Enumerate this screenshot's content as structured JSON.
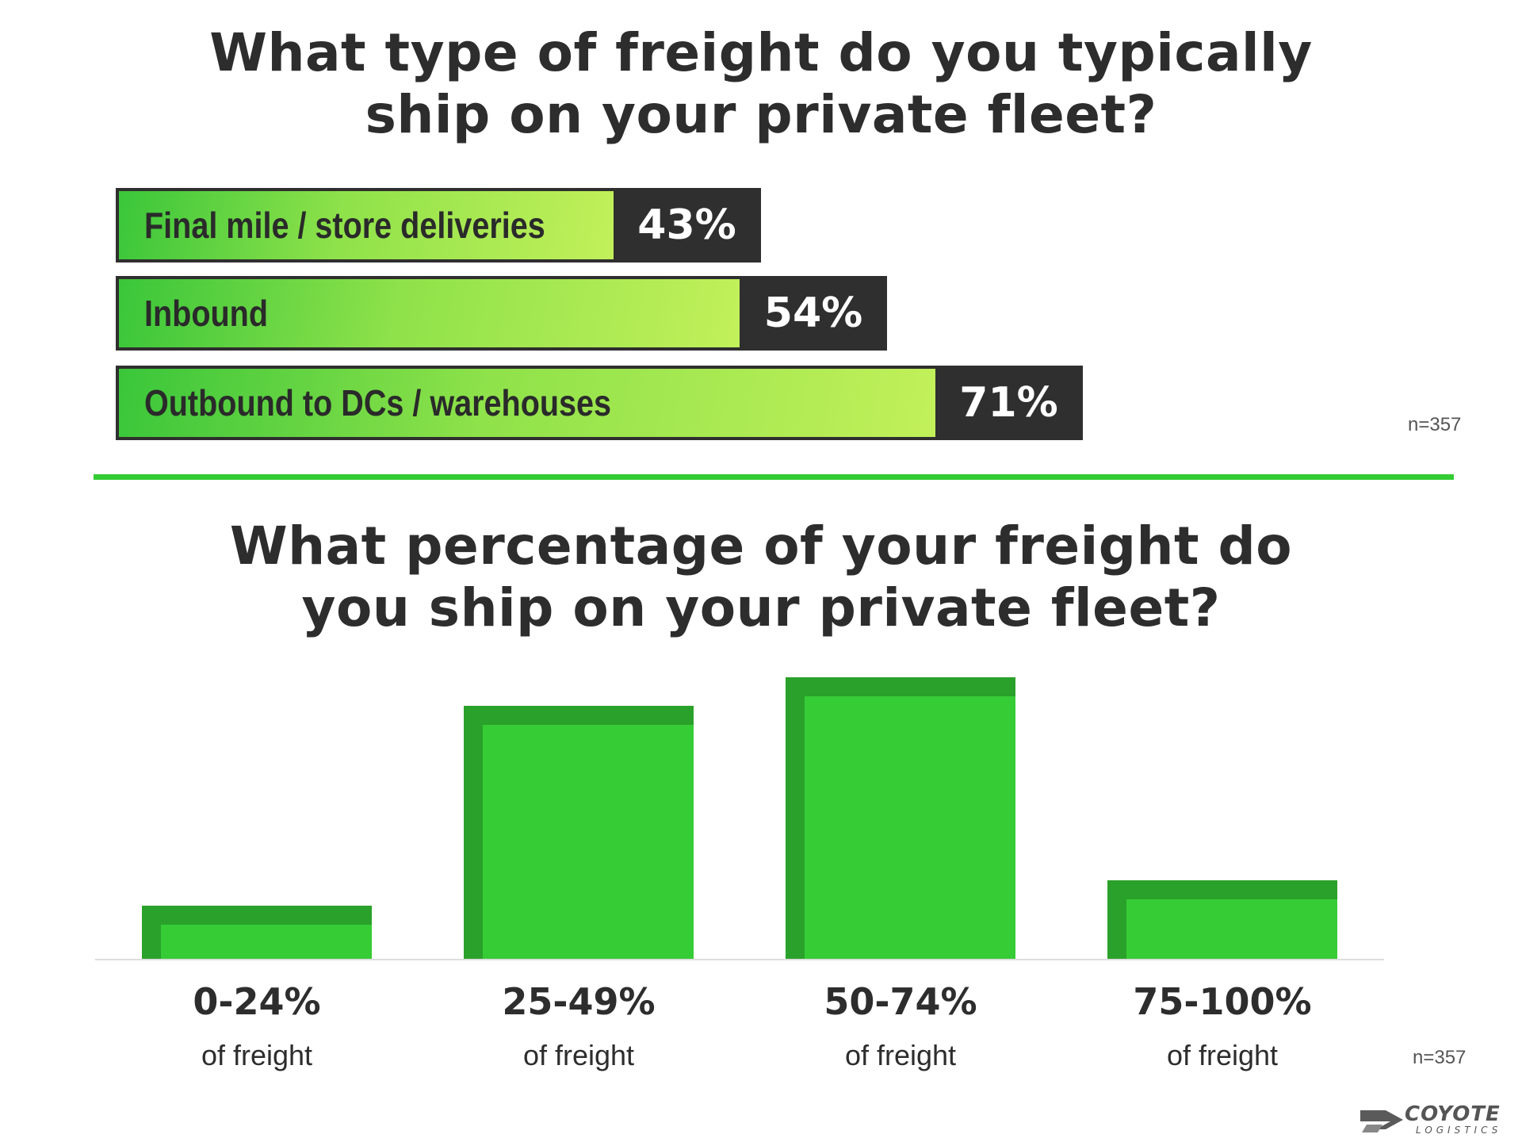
{
  "chart_data": [
    {
      "type": "bar",
      "orientation": "horizontal",
      "title": "What type of freight do you typically ship on your private fleet?",
      "categories": [
        "Final mile / store deliveries",
        "Inbound",
        "Outbound to DCs / warehouses"
      ],
      "values": [
        43,
        54,
        71
      ],
      "value_labels": [
        "43%",
        "54%",
        "71%"
      ],
      "sample_size": "n=357"
    },
    {
      "type": "bar",
      "orientation": "vertical",
      "title": "What percentage of your freight do you ship on your private fleet?",
      "categories": [
        "0-24%",
        "25-49%",
        "50-74%",
        "75-100%"
      ],
      "category_sublabel": "of freight",
      "values": [
        19,
        90,
        100,
        28
      ],
      "value_scale": "relative (no axis printed)",
      "sample_size": "n=357"
    }
  ],
  "colors": {
    "bar_dark": "#2f2f2f",
    "gradient_start": "#3ac63a",
    "gradient_end": "#c2f05a",
    "green": "#36cc36",
    "green_shadow": "#2aa12a",
    "divider": "#33cc33"
  },
  "logo": {
    "name": "COYOTE",
    "sub": "LOGISTICS"
  }
}
